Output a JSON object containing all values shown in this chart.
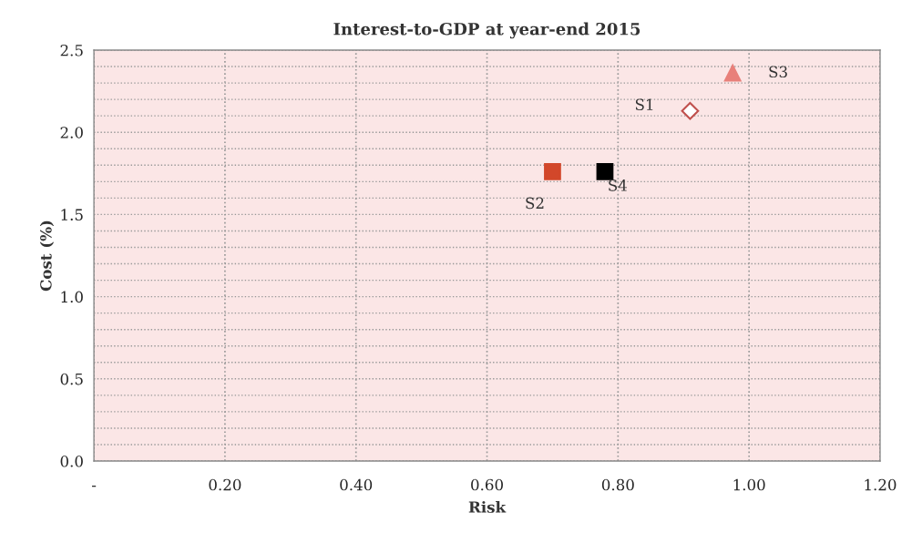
{
  "chart_data": {
    "type": "scatter",
    "title": "Interest-to-GDP at year-end 2015",
    "xlabel": "Risk",
    "ylabel": "Cost (%)",
    "series": [
      {
        "name": "S1",
        "x": [
          0.91
        ],
        "values": [
          2.13
        ],
        "color": "#c0504d",
        "marker": "diamond"
      },
      {
        "name": "S2",
        "x": [
          0.7
        ],
        "values": [
          1.76
        ],
        "color": "#d2472a",
        "marker": "square"
      },
      {
        "name": "S3",
        "x": [
          0.975
        ],
        "values": [
          2.36
        ],
        "color": "#e8807a",
        "marker": "triangle"
      },
      {
        "name": "S4",
        "x": [
          0.78
        ],
        "values": [
          1.76
        ],
        "color": "#000000",
        "marker": "square"
      }
    ],
    "xlim": [
      0,
      1.2
    ],
    "ylim": [
      0,
      2.5
    ],
    "xticks": [
      {
        "value": 0,
        "label": "-"
      },
      {
        "value": 0.2,
        "label": "0.20"
      },
      {
        "value": 0.4,
        "label": "0.40"
      },
      {
        "value": 0.6,
        "label": "0.60"
      },
      {
        "value": 0.8,
        "label": "0.80"
      },
      {
        "value": 1.0,
        "label": "1.00"
      },
      {
        "value": 1.2,
        "label": "1.20"
      }
    ],
    "yticks": [
      {
        "value": 0,
        "label": "0.0"
      },
      {
        "value": 0.5,
        "label": "0.5"
      },
      {
        "value": 1.0,
        "label": "1.0"
      },
      {
        "value": 1.5,
        "label": "1.5"
      },
      {
        "value": 2.0,
        "label": "2.0"
      },
      {
        "value": 2.5,
        "label": "2.5"
      }
    ],
    "grid": true,
    "legend": false
  }
}
